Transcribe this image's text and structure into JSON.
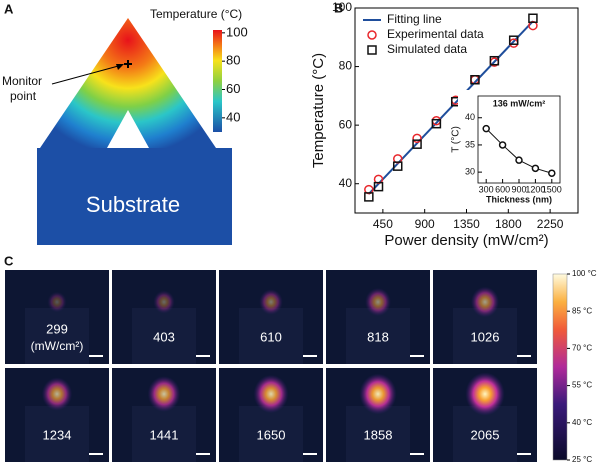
{
  "panel_a": {
    "label": "A",
    "colorbar_title": "Temperature (°C)",
    "colorbar_lim": [
      30,
      102
    ],
    "colorbar_ticks": [
      100,
      80,
      60,
      40
    ],
    "monitor_label": [
      "Monitor",
      "point"
    ],
    "substrate_label": "Substrate"
  },
  "panel_b_label": "B",
  "chart_data": [
    {
      "type": "scatter",
      "xlabel": "Power density (mW/cm²)",
      "ylabel": "Temperature (°C)",
      "xlim": [
        150,
        2550
      ],
      "ylim": [
        30,
        100
      ],
      "xticks": [
        450,
        900,
        1350,
        1800,
        2250
      ],
      "yticks": [
        40,
        60,
        80,
        100
      ],
      "legend": "upper left",
      "series": [
        {
          "name": "Fitting line",
          "color": "#1f4e9c",
          "style": "line",
          "x": [
            299,
            2065
          ],
          "values": [
            36.5,
            95.5
          ]
        },
        {
          "name": "Experimental data",
          "color": "#e8262b",
          "style": "circle",
          "x": [
            299,
            403,
            610,
            818,
            1026,
            1234,
            1441,
            1650,
            1858,
            2065
          ],
          "values": [
            38,
            41.5,
            48.5,
            55.5,
            61.5,
            68.5,
            75.5,
            81.5,
            88,
            94
          ]
        },
        {
          "name": "Simulated data",
          "color": "#111111",
          "style": "square",
          "x": [
            299,
            403,
            610,
            818,
            1026,
            1234,
            1441,
            1650,
            1858,
            2065
          ],
          "values": [
            35.5,
            39,
            46,
            53.5,
            60.5,
            68,
            75.5,
            82,
            89,
            96.5
          ]
        }
      ]
    },
    {
      "type": "line",
      "title": "136 mW/cm²",
      "xlabel": "Thickness (nm)",
      "ylabel": "T (°C)",
      "xlim": [
        150,
        1650
      ],
      "ylim": [
        28,
        44
      ],
      "xticks": [
        300,
        600,
        900,
        1200,
        1500
      ],
      "yticks": [
        30,
        35,
        40
      ],
      "series": [
        {
          "color": "#111111",
          "x": [
            300,
            600,
            900,
            1200,
            1500
          ],
          "values": [
            38,
            35,
            32.2,
            30.7,
            29.8
          ]
        }
      ]
    }
  ],
  "panel_c": {
    "label": "C",
    "images": [
      {
        "label": "299",
        "unit": "(mW/cm²)"
      },
      {
        "label": "403"
      },
      {
        "label": "610"
      },
      {
        "label": "818"
      },
      {
        "label": "1026"
      },
      {
        "label": "1234"
      },
      {
        "label": "1441"
      },
      {
        "label": "1650"
      },
      {
        "label": "1858"
      },
      {
        "label": "2065"
      }
    ],
    "colorbar_lim": [
      25,
      100
    ],
    "colorbar_ticks": [
      {
        "value": 100,
        "label": "100 °C"
      },
      {
        "value": 85,
        "label": "85 °C"
      },
      {
        "value": 70,
        "label": "70 °C"
      },
      {
        "value": 55,
        "label": "55 °C"
      },
      {
        "value": 40,
        "label": "40 °C"
      },
      {
        "value": 25,
        "label": "25 °C"
      }
    ]
  }
}
